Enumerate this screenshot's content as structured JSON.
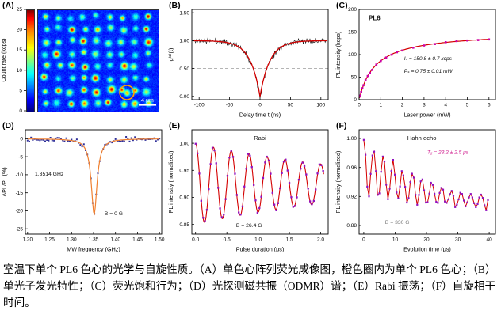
{
  "caption": {
    "text": "室温下单个 PL6 色心的光学与自旋性质。（A）单色心阵列荧光成像图，橙色圈内为单个 PL6 色心；（B）单光子发光特性；（C）荧光饱和行为；（D）光探测磁共振（ODMR）谱；（E）Rabi 振荡；（F）自旋相干时间。"
  },
  "chart_data": [
    {
      "id": "A",
      "label": "(A)",
      "type": "heatmap",
      "colorbar": {
        "label": "Count rate (kcps)",
        "ticks": [
          "25",
          "20",
          "15",
          "10",
          "5",
          "0"
        ],
        "range_kcps": [
          0,
          25
        ],
        "colormap": "jet"
      },
      "scalebar_label": "4 μm",
      "highlight": {
        "shape": "circle",
        "color": "#ffa000"
      }
    },
    {
      "id": "B",
      "label": "(B)",
      "type": "line",
      "xlabel": "Delay time t (ns)",
      "ylabel": "g⁽²⁾(t)",
      "xlim": [
        -112,
        112
      ],
      "ylim": [
        -0.06,
        1.56
      ],
      "xticks": [
        "-100",
        "-50",
        "0",
        "50",
        "100"
      ],
      "yticks": [
        "0.00",
        "0.50",
        "1.00",
        "1.50"
      ],
      "dashed_line_y": 0.5,
      "fit": {
        "baseline": 1.0,
        "dip_min": 0.0,
        "tau_ns": 16,
        "noise_sd": 0.05
      },
      "colors": {
        "data": "#111111",
        "fit": "#d40000"
      }
    },
    {
      "id": "C",
      "label": "(C)",
      "type": "scatter-line",
      "xlabel": "Laser power (mW)",
      "ylabel": "PL intensity (kcps)",
      "xlim": [
        0,
        6.3
      ],
      "ylim": [
        0,
        200
      ],
      "xticks": [
        "0",
        "1",
        "2",
        "3",
        "4",
        "5",
        "6"
      ],
      "yticks": [
        "0",
        "50",
        "100",
        "150",
        "200"
      ],
      "fit": {
        "Is_kcps": 150.8,
        "Ps_mW": 0.75
      },
      "points_mW": [
        0.05,
        0.1,
        0.15,
        0.2,
        0.3,
        0.4,
        0.5,
        0.6,
        0.8,
        1.0,
        1.25,
        1.5,
        1.75,
        2.0,
        2.5,
        3.0,
        3.5,
        4.0,
        4.5,
        5.0,
        5.5,
        6.0
      ],
      "annotations": [
        {
          "text": "PL6",
          "fx": 0.07,
          "fy": 0.12,
          "size": 8,
          "bold": true
        },
        {
          "text": "Iₛ = 150.8 ± 0.7 kcps",
          "fx": 0.33,
          "fy": 0.56,
          "size": 6.6,
          "italic": true
        },
        {
          "text": "Pₛ = 0.75 ± 0.01 mW",
          "fx": 0.33,
          "fy": 0.7,
          "size": 6.6,
          "italic": true
        }
      ],
      "colors": {
        "points": "#cc00aa",
        "fit": "#d40000"
      }
    },
    {
      "id": "D",
      "label": "(D)",
      "type": "scatter-line",
      "xlabel": "MW frequency (GHz)",
      "ylabel": "ΔPL/PL (%)",
      "xlim": [
        1.195,
        1.505
      ],
      "ylim": [
        -26.5,
        2.5
      ],
      "xticks": [
        "1.20",
        "1.25",
        "1.30",
        "1.35",
        "1.40",
        "1.45",
        "1.50"
      ],
      "yticks": [
        "0",
        "-5",
        "-10",
        "-15",
        "-20",
        "-25"
      ],
      "fit": {
        "center_GHz": 1.3514,
        "depth_pct": -21,
        "fwhm_GHz": 0.016,
        "noise_sd": 0.55
      },
      "annotations": [
        {
          "text": "1.3514 GHz",
          "fx": 0.07,
          "fy": 0.44,
          "size": 6.8
        },
        {
          "text": "B = 0 G",
          "fx": 0.58,
          "fy": 0.82,
          "size": 6.8
        }
      ],
      "colors": {
        "points": "#30309a",
        "fit": "#f08030"
      }
    },
    {
      "id": "E",
      "label": "(E)",
      "type": "scatter-line",
      "xlabel": "Pulse duration (μs)",
      "ylabel": "PL intensity (normalized)",
      "xlim": [
        -0.06,
        2.12
      ],
      "ylim": [
        0.832,
        1.025
      ],
      "xticks": [
        "0.0",
        "0.5",
        "1.0",
        "1.5",
        "2.0"
      ],
      "yticks": [
        "0.85",
        "0.90",
        "0.95",
        "1.00"
      ],
      "fit": {
        "center": 0.925,
        "amplitude": 0.075,
        "freq_per_us": 3.5,
        "decay_us": 2.8,
        "noise_sd": 0.004,
        "t_max_us": 2.05,
        "t_step_us": 0.03
      },
      "annotations": [
        {
          "text": "Rabi",
          "fx": 0.5,
          "fy": 0.1,
          "size": 7.6,
          "anchor": "middle"
        },
        {
          "text": "B = 26.4 G",
          "fx": 0.42,
          "fy": 0.93,
          "size": 6.8,
          "anchor": "middle"
        }
      ],
      "colors": {
        "points": "#9010c0",
        "fit": "#d40000"
      }
    },
    {
      "id": "F",
      "label": "(F)",
      "type": "scatter-line",
      "xlabel": "Evolution time (μs)",
      "ylabel": "PL intensity (normalized)",
      "xlim": [
        -1.5,
        42
      ],
      "ylim": [
        0.868,
        1.012
      ],
      "xticks": [
        "0",
        "10",
        "20",
        "30",
        "40"
      ],
      "yticks": [
        "0.88",
        "0.92",
        "0.96",
        "1.00"
      ],
      "fit": {
        "baseline": 0.9,
        "amplitude": 0.1,
        "T2_us": 23.2,
        "osc_period_us": 3.1,
        "noise_sd": 0.0045,
        "t_max_us": 40,
        "t_step_us": 0.55
      },
      "annotations": [
        {
          "text": "Hahn echo",
          "fx": 0.46,
          "fy": 0.1,
          "size": 7.6,
          "anchor": "middle"
        },
        {
          "text": "T₂ = 23.2 ± 2.5 μs",
          "fx": 0.5,
          "fy": 0.23,
          "size": 6.6,
          "italic": true,
          "color": "#d02090"
        },
        {
          "text": "B = 330 G",
          "fx": 0.28,
          "fy": 0.9,
          "size": 6.8,
          "anchor": "middle",
          "color": "#777777"
        }
      ],
      "colors": {
        "points": "#9010c0",
        "fit": "#d40000"
      }
    }
  ]
}
